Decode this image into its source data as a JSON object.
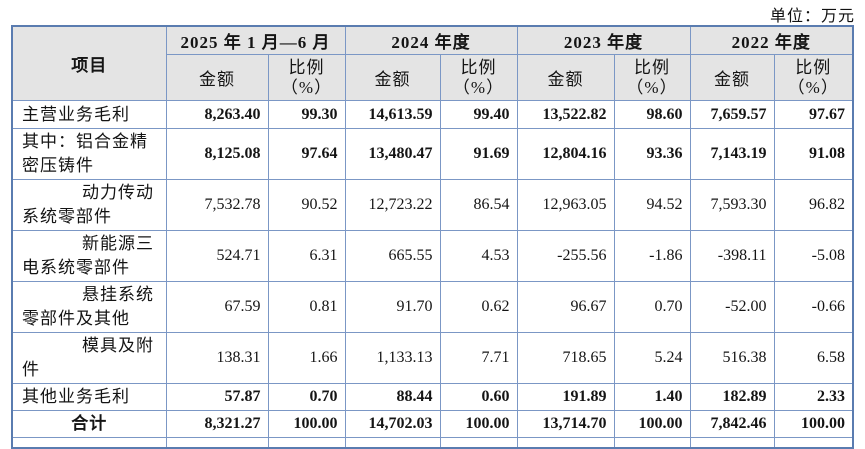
{
  "unit_label": "单位：万元",
  "colors": {
    "border_inner": "#7b97c5",
    "border_outer": "#5a7cb0",
    "header_bg": "#e4e4e4",
    "text": "#141414"
  },
  "table": {
    "item_header": "项目",
    "period_headers": [
      "2025 年 1 月—6 月",
      "2024 年度",
      "2023 年度",
      "2022 年度"
    ],
    "sub_header_amount": "金额",
    "sub_header_ratio_line1": "比例",
    "sub_header_ratio_line2": "（%）",
    "rows": [
      {
        "label": "主营业务毛利",
        "bold": true,
        "indent": false,
        "total": false,
        "values": [
          "8,263.40",
          "99.30",
          "14,613.59",
          "99.40",
          "13,522.82",
          "98.60",
          "7,659.57",
          "97.67"
        ]
      },
      {
        "label": "其中：铝合金精密压铸件",
        "bold": true,
        "indent": false,
        "total": false,
        "values": [
          "8,125.08",
          "97.64",
          "13,480.47",
          "91.69",
          "12,804.16",
          "93.36",
          "7,143.19",
          "91.08"
        ]
      },
      {
        "label": "动力传动系统零部件",
        "bold": false,
        "indent": true,
        "total": false,
        "values": [
          "7,532.78",
          "90.52",
          "12,723.22",
          "86.54",
          "12,963.05",
          "94.52",
          "7,593.30",
          "96.82"
        ]
      },
      {
        "label": "新能源三电系统零部件",
        "bold": false,
        "indent": true,
        "total": false,
        "values": [
          "524.71",
          "6.31",
          "665.55",
          "4.53",
          "-255.56",
          "-1.86",
          "-398.11",
          "-5.08"
        ]
      },
      {
        "label": "悬挂系统零部件及其他",
        "bold": false,
        "indent": true,
        "total": false,
        "values": [
          "67.59",
          "0.81",
          "91.70",
          "0.62",
          "96.67",
          "0.70",
          "-52.00",
          "-0.66"
        ]
      },
      {
        "label": "模具及附件",
        "bold": false,
        "indent": true,
        "total": false,
        "values": [
          "138.31",
          "1.66",
          "1,133.13",
          "7.71",
          "718.65",
          "5.24",
          "516.38",
          "6.58"
        ]
      },
      {
        "label": "其他业务毛利",
        "bold": true,
        "indent": false,
        "total": false,
        "values": [
          "57.87",
          "0.70",
          "88.44",
          "0.60",
          "191.89",
          "1.40",
          "182.89",
          "2.33"
        ]
      },
      {
        "label": "合计",
        "bold": true,
        "indent": false,
        "total": true,
        "values": [
          "8,321.27",
          "100.00",
          "14,702.03",
          "100.00",
          "13,714.70",
          "100.00",
          "7,842.46",
          "100.00"
        ]
      }
    ]
  }
}
